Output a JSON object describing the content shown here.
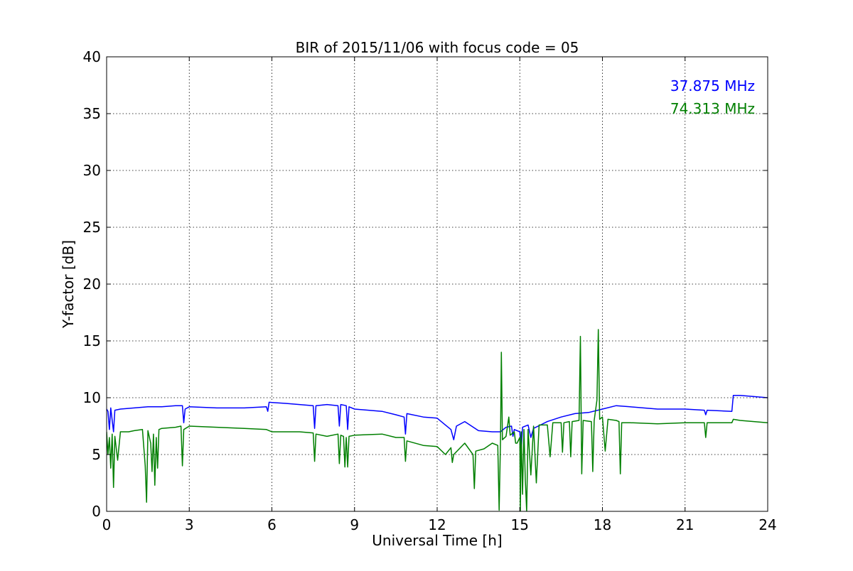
{
  "chart_data": {
    "type": "line",
    "title": "BIR of 2015/11/06 with focus code = 05",
    "xlabel": "Universal Time [h]",
    "ylabel": "Y-factor [dB]",
    "xlim": [
      0,
      24
    ],
    "ylim": [
      0,
      40
    ],
    "xticks": [
      0,
      3,
      6,
      9,
      12,
      15,
      18,
      21,
      24
    ],
    "yticks": [
      0,
      5,
      10,
      15,
      20,
      25,
      30,
      35,
      40
    ],
    "grid": true,
    "legend_position": "top-right",
    "series": [
      {
        "name": "37.875 MHz",
        "color": "#0000ff",
        "points": [
          [
            0.0,
            9.0
          ],
          [
            0.05,
            8.8
          ],
          [
            0.1,
            7.2
          ],
          [
            0.15,
            9.1
          ],
          [
            0.25,
            7.0
          ],
          [
            0.3,
            8.9
          ],
          [
            0.5,
            9.0
          ],
          [
            1.0,
            9.1
          ],
          [
            1.5,
            9.2
          ],
          [
            2.0,
            9.2
          ],
          [
            2.5,
            9.3
          ],
          [
            2.75,
            9.3
          ],
          [
            2.8,
            7.8
          ],
          [
            2.85,
            9.0
          ],
          [
            3.0,
            9.2
          ],
          [
            4.0,
            9.1
          ],
          [
            5.0,
            9.1
          ],
          [
            5.8,
            9.2
          ],
          [
            5.85,
            8.8
          ],
          [
            5.9,
            9.6
          ],
          [
            6.5,
            9.5
          ],
          [
            7.0,
            9.4
          ],
          [
            7.5,
            9.3
          ],
          [
            7.55,
            7.3
          ],
          [
            7.6,
            9.3
          ],
          [
            8.0,
            9.4
          ],
          [
            8.4,
            9.3
          ],
          [
            8.45,
            7.5
          ],
          [
            8.5,
            9.4
          ],
          [
            8.7,
            9.3
          ],
          [
            8.75,
            7.2
          ],
          [
            8.8,
            9.2
          ],
          [
            9.0,
            9.0
          ],
          [
            10.0,
            8.8
          ],
          [
            10.5,
            8.5
          ],
          [
            10.8,
            8.3
          ],
          [
            10.85,
            6.8
          ],
          [
            10.9,
            8.6
          ],
          [
            11.5,
            8.3
          ],
          [
            12.0,
            8.2
          ],
          [
            12.3,
            7.6
          ],
          [
            12.5,
            7.2
          ],
          [
            12.6,
            6.3
          ],
          [
            12.7,
            7.5
          ],
          [
            13.0,
            7.9
          ],
          [
            13.5,
            7.1
          ],
          [
            14.0,
            7.0
          ],
          [
            14.3,
            7.0
          ],
          [
            14.5,
            7.4
          ],
          [
            14.7,
            7.5
          ],
          [
            14.75,
            6.6
          ],
          [
            14.8,
            7.2
          ],
          [
            15.0,
            7.0
          ],
          [
            15.05,
            5.2
          ],
          [
            15.1,
            7.4
          ],
          [
            15.3,
            7.6
          ],
          [
            15.4,
            6.5
          ],
          [
            15.5,
            7.3
          ],
          [
            16.0,
            7.9
          ],
          [
            16.5,
            8.3
          ],
          [
            17.0,
            8.6
          ],
          [
            17.5,
            8.7
          ],
          [
            18.0,
            9.0
          ],
          [
            18.5,
            9.3
          ],
          [
            19.0,
            9.2
          ],
          [
            20.0,
            9.0
          ],
          [
            21.0,
            9.0
          ],
          [
            21.7,
            8.9
          ],
          [
            21.75,
            8.5
          ],
          [
            21.8,
            8.9
          ],
          [
            22.7,
            8.8
          ],
          [
            22.75,
            10.2
          ],
          [
            23.0,
            10.2
          ],
          [
            23.5,
            10.1
          ],
          [
            24.0,
            10.0
          ]
        ]
      },
      {
        "name": "74.313 MHz",
        "color": "#007f00",
        "points": [
          [
            0.0,
            7.0
          ],
          [
            0.05,
            5.0
          ],
          [
            0.1,
            6.5
          ],
          [
            0.15,
            3.8
          ],
          [
            0.2,
            6.8
          ],
          [
            0.25,
            2.1
          ],
          [
            0.3,
            6.6
          ],
          [
            0.4,
            4.5
          ],
          [
            0.5,
            7.0
          ],
          [
            0.8,
            7.0
          ],
          [
            1.0,
            7.1
          ],
          [
            1.3,
            7.2
          ],
          [
            1.4,
            4.0
          ],
          [
            1.45,
            0.8
          ],
          [
            1.5,
            7.1
          ],
          [
            1.6,
            6.0
          ],
          [
            1.65,
            3.5
          ],
          [
            1.7,
            6.8
          ],
          [
            1.75,
            2.3
          ],
          [
            1.8,
            6.5
          ],
          [
            1.85,
            3.8
          ],
          [
            1.9,
            7.2
          ],
          [
            2.0,
            7.3
          ],
          [
            2.5,
            7.4
          ],
          [
            2.7,
            7.5
          ],
          [
            2.75,
            4.0
          ],
          [
            2.8,
            7.2
          ],
          [
            3.0,
            7.5
          ],
          [
            4.0,
            7.4
          ],
          [
            5.0,
            7.3
          ],
          [
            5.8,
            7.2
          ],
          [
            6.0,
            7.0
          ],
          [
            7.0,
            7.0
          ],
          [
            7.5,
            6.9
          ],
          [
            7.55,
            4.4
          ],
          [
            7.6,
            6.8
          ],
          [
            8.0,
            6.6
          ],
          [
            8.4,
            6.8
          ],
          [
            8.45,
            4.2
          ],
          [
            8.5,
            6.7
          ],
          [
            8.6,
            6.6
          ],
          [
            8.65,
            3.9
          ],
          [
            8.7,
            6.5
          ],
          [
            8.75,
            3.9
          ],
          [
            8.8,
            6.6
          ],
          [
            9.0,
            6.7
          ],
          [
            10.0,
            6.8
          ],
          [
            10.5,
            6.5
          ],
          [
            10.8,
            6.5
          ],
          [
            10.85,
            4.4
          ],
          [
            10.9,
            6.2
          ],
          [
            11.5,
            5.8
          ],
          [
            12.0,
            5.7
          ],
          [
            12.3,
            5.0
          ],
          [
            12.5,
            5.6
          ],
          [
            12.55,
            4.3
          ],
          [
            12.6,
            5.0
          ],
          [
            13.0,
            6.0
          ],
          [
            13.3,
            5.0
          ],
          [
            13.35,
            2.0
          ],
          [
            13.4,
            5.3
          ],
          [
            13.7,
            5.5
          ],
          [
            14.0,
            6.0
          ],
          [
            14.2,
            5.8
          ],
          [
            14.25,
            0.1
          ],
          [
            14.3,
            6.2
          ],
          [
            14.33,
            14.0
          ],
          [
            14.37,
            6.3
          ],
          [
            14.5,
            6.6
          ],
          [
            14.6,
            8.3
          ],
          [
            14.65,
            6.7
          ],
          [
            14.8,
            7.0
          ],
          [
            14.85,
            6.0
          ],
          [
            14.9,
            6.0
          ],
          [
            15.0,
            6.5
          ],
          [
            15.02,
            0.0
          ],
          [
            15.05,
            7.0
          ],
          [
            15.1,
            1.5
          ],
          [
            15.15,
            7.2
          ],
          [
            15.2,
            2.8
          ],
          [
            15.25,
            0.0
          ],
          [
            15.3,
            7.2
          ],
          [
            15.4,
            3.2
          ],
          [
            15.5,
            7.5
          ],
          [
            15.6,
            2.5
          ],
          [
            15.7,
            7.6
          ],
          [
            16.0,
            7.6
          ],
          [
            16.1,
            4.8
          ],
          [
            16.2,
            7.8
          ],
          [
            16.5,
            7.8
          ],
          [
            16.55,
            5.2
          ],
          [
            16.6,
            7.8
          ],
          [
            16.8,
            7.9
          ],
          [
            16.85,
            4.8
          ],
          [
            16.9,
            7.9
          ],
          [
            17.15,
            8.0
          ],
          [
            17.2,
            15.4
          ],
          [
            17.25,
            3.3
          ],
          [
            17.3,
            8.0
          ],
          [
            17.6,
            7.9
          ],
          [
            17.65,
            3.5
          ],
          [
            17.7,
            8.0
          ],
          [
            17.8,
            9.8
          ],
          [
            17.85,
            16.0
          ],
          [
            17.9,
            8.1
          ],
          [
            18.0,
            8.3
          ],
          [
            18.1,
            5.3
          ],
          [
            18.2,
            8.1
          ],
          [
            18.5,
            8.0
          ],
          [
            18.6,
            7.9
          ],
          [
            18.65,
            3.3
          ],
          [
            18.7,
            7.8
          ],
          [
            19.0,
            7.8
          ],
          [
            20.0,
            7.7
          ],
          [
            21.0,
            7.8
          ],
          [
            21.7,
            7.8
          ],
          [
            21.75,
            6.5
          ],
          [
            21.8,
            7.8
          ],
          [
            22.7,
            7.8
          ],
          [
            22.75,
            8.1
          ],
          [
            23.0,
            8.0
          ],
          [
            24.0,
            7.8
          ]
        ]
      }
    ]
  }
}
